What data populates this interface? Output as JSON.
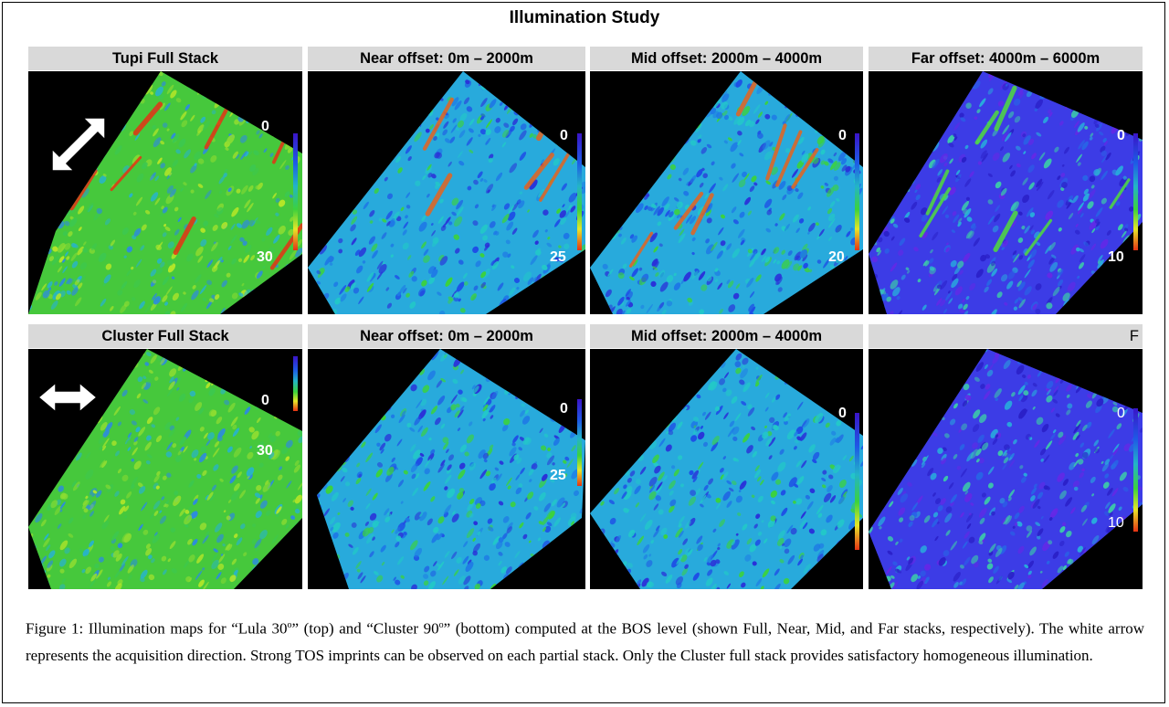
{
  "figure_title": "Illumination Study",
  "rows": [
    {
      "panels": [
        {
          "header": "Tupi Full Stack",
          "top_value": "0",
          "bottom_value": "30",
          "palette": "green"
        },
        {
          "header": "Near offset: 0m – 2000m",
          "top_value": "0",
          "bottom_value": "25",
          "palette": "cyan"
        },
        {
          "header": "Mid offset: 2000m – 4000m",
          "top_value": "0",
          "bottom_value": "20",
          "palette": "cyan"
        },
        {
          "header": "Far offset: 4000m – 6000m",
          "top_value": "0",
          "bottom_value": "10",
          "palette": "blue"
        }
      ]
    },
    {
      "panels": [
        {
          "header": "Cluster Full Stack",
          "top_value": "0",
          "bottom_value": "30",
          "palette": "green"
        },
        {
          "header": "Near offset: 0m – 2000m",
          "top_value": "0",
          "bottom_value": "25",
          "palette": "cyan"
        },
        {
          "header": "Mid offset: 2000m – 4000m",
          "top_value": "0",
          "bottom_value": "",
          "palette": "cyan"
        },
        {
          "header": "F",
          "top_value": "0",
          "bottom_value": "10",
          "palette": "blue"
        }
      ]
    }
  ],
  "arrow_icons": [
    "diagonal-double-arrow-icon",
    "horizontal-double-arrow-icon"
  ],
  "caption": {
    "part1": "Figure 1: Illumination maps for “Lula 30",
    "sup1": "o",
    "part2": "” (top) and “Cluster 90",
    "sup2": "o",
    "part3": "” (bottom) computed at the BOS level (shown Full, Near, Mid, and Far stacks, respectively). The white arrow represents the acquisition direction. Strong TOS imprints can be observed on each partial stack. Only the Cluster full stack provides satisfactory homogeneous illumination."
  },
  "colors": {
    "green_map": "#46c83c",
    "cyan_map": "#28aadc",
    "blue_map": "#3c3ce6",
    "header_bg": "#d9d9d9"
  }
}
